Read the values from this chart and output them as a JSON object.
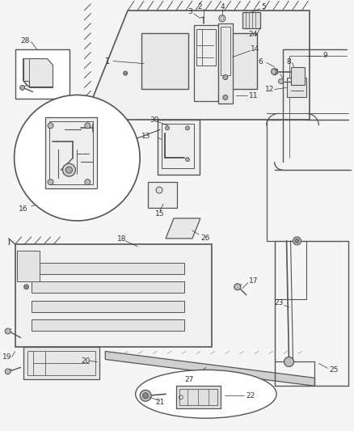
{
  "bg_color": "#f5f5f5",
  "line_color": "#555555",
  "label_color": "#444444",
  "figsize": [
    4.38,
    5.33
  ],
  "dpi": 100
}
